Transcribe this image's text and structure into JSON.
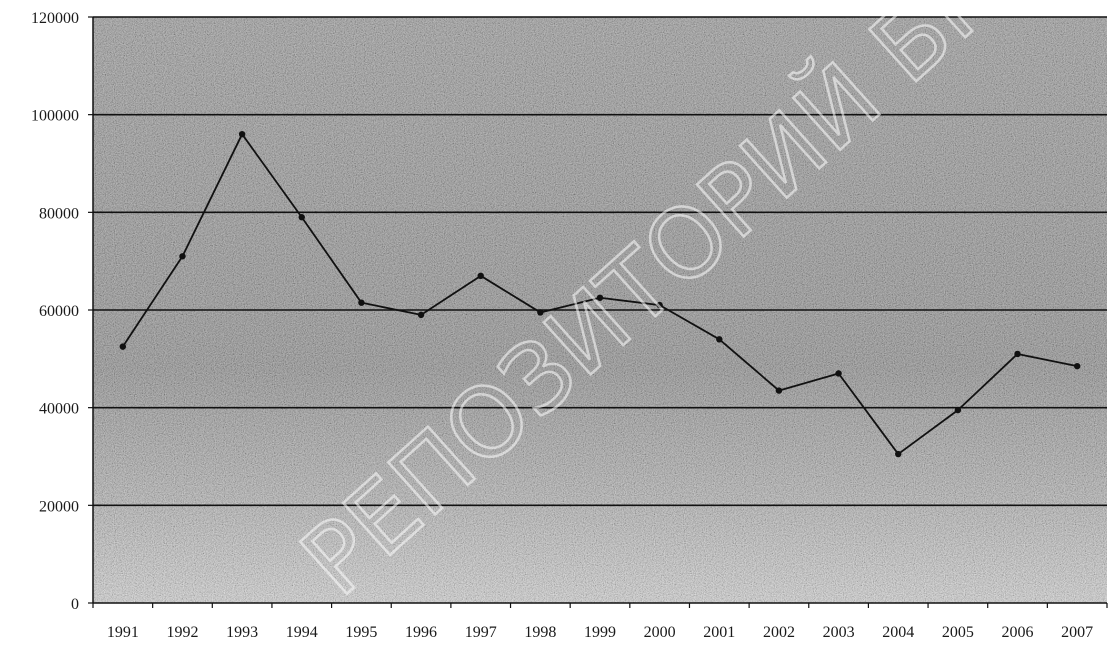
{
  "chart_data": {
    "type": "line",
    "title": "",
    "xlabel": "",
    "ylabel": "",
    "categories": [
      "1991",
      "1992",
      "1993",
      "1994",
      "1995",
      "1996",
      "1997",
      "1998",
      "1999",
      "2000",
      "2001",
      "2002",
      "2003",
      "2004",
      "2005",
      "2006",
      "2007"
    ],
    "series": [
      {
        "values": [
          52500,
          71000,
          96000,
          79000,
          61500,
          59000,
          67000,
          59500,
          62500,
          61000,
          54000,
          43500,
          47000,
          30500,
          39500,
          51000,
          48500
        ]
      }
    ],
    "ylim": [
      0,
      120000
    ],
    "yticks": [
      "0",
      "20000",
      "40000",
      "60000",
      "80000",
      "100000",
      "120000"
    ],
    "grid": true,
    "legend": "none"
  },
  "watermark": {
    "text": "РЕПОЗИТОРИЙ БГПУ"
  },
  "colors": {
    "line": "#111111",
    "grid": "#111111",
    "plot_background": "#8a8a8a",
    "axis": "#111111"
  }
}
